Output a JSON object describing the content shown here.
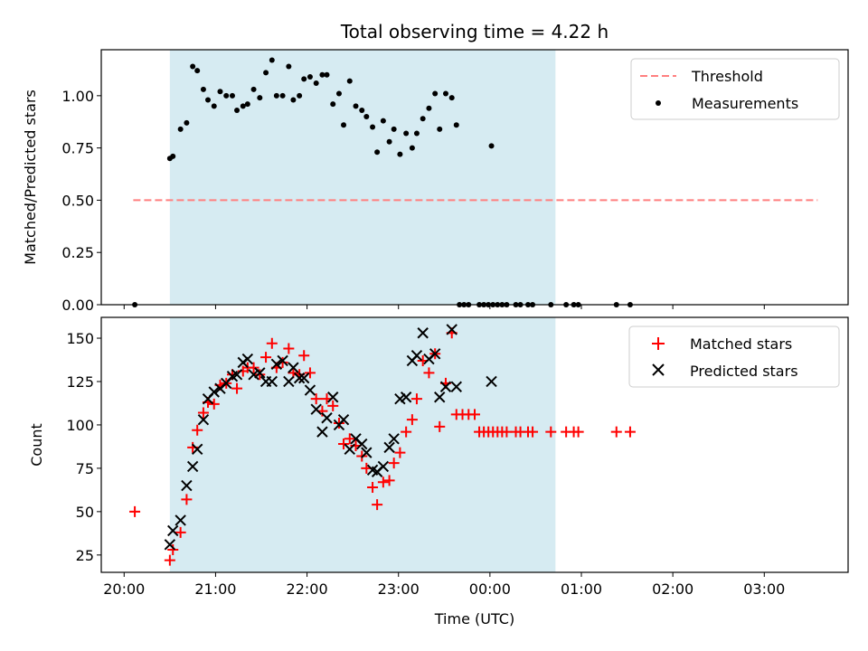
{
  "chart_data": {
    "title": "Total observing time = 4.22 h",
    "xlabel": "Time (UTC)",
    "x_ticks": [
      "20:00",
      "21:00",
      "22:00",
      "23:00",
      "00:00",
      "01:00",
      "02:00",
      "03:00"
    ],
    "observing_window": {
      "start": "20:30",
      "end": "00:43",
      "color": "#add8e6"
    },
    "panels": [
      {
        "type": "scatter",
        "ylabel": "Matched/Predicted stars",
        "ylim": [
          0,
          1.22
        ],
        "y_ticks": [
          "0.00",
          "0.25",
          "0.50",
          "0.75",
          "1.00"
        ],
        "legend_placement": "top-right",
        "series": [
          {
            "name": "Threshold",
            "kind": "dashed-line",
            "color": "#ff7f7f",
            "points": [
              [
                "20:06",
                0.5
              ],
              [
                "03:35",
                0.5
              ]
            ]
          },
          {
            "name": "Measurements",
            "kind": "dot",
            "color": "#000000",
            "points": [
              [
                "20:07",
                0.0
              ],
              [
                "20:30",
                0.7
              ],
              [
                "20:32",
                0.71
              ],
              [
                "20:37",
                0.84
              ],
              [
                "20:41",
                0.87
              ],
              [
                "20:45",
                1.14
              ],
              [
                "20:48",
                1.12
              ],
              [
                "20:52",
                1.03
              ],
              [
                "20:55",
                0.98
              ],
              [
                "20:59",
                0.95
              ],
              [
                "21:03",
                1.02
              ],
              [
                "21:07",
                1.0
              ],
              [
                "21:11",
                1.0
              ],
              [
                "21:14",
                0.93
              ],
              [
                "21:18",
                0.95
              ],
              [
                "21:21",
                0.96
              ],
              [
                "21:25",
                1.03
              ],
              [
                "21:29",
                0.99
              ],
              [
                "21:33",
                1.11
              ],
              [
                "21:37",
                1.17
              ],
              [
                "21:40",
                1.0
              ],
              [
                "21:44",
                1.0
              ],
              [
                "21:48",
                1.14
              ],
              [
                "21:51",
                0.98
              ],
              [
                "21:55",
                1.0
              ],
              [
                "21:58",
                1.08
              ],
              [
                "22:02",
                1.09
              ],
              [
                "22:06",
                1.06
              ],
              [
                "22:10",
                1.1
              ],
              [
                "22:13",
                1.1
              ],
              [
                "22:17",
                0.96
              ],
              [
                "22:21",
                1.01
              ],
              [
                "22:24",
                0.86
              ],
              [
                "22:28",
                1.07
              ],
              [
                "22:32",
                0.95
              ],
              [
                "22:36",
                0.93
              ],
              [
                "22:39",
                0.9
              ],
              [
                "22:43",
                0.85
              ],
              [
                "22:46",
                0.73
              ],
              [
                "22:50",
                0.88
              ],
              [
                "22:54",
                0.78
              ],
              [
                "22:57",
                0.84
              ],
              [
                "23:01",
                0.72
              ],
              [
                "23:05",
                0.82
              ],
              [
                "23:09",
                0.75
              ],
              [
                "23:12",
                0.82
              ],
              [
                "23:16",
                0.89
              ],
              [
                "23:20",
                0.94
              ],
              [
                "23:24",
                1.01
              ],
              [
                "23:27",
                0.84
              ],
              [
                "23:31",
                1.01
              ],
              [
                "23:35",
                0.99
              ],
              [
                "23:38",
                0.86
              ],
              [
                "00:01",
                0.76
              ]
            ]
          },
          {
            "name": "",
            "kind": "dot",
            "color": "#000000",
            "points": [
              [
                "23:40",
                0
              ],
              [
                "23:43",
                0
              ],
              [
                "23:46",
                0
              ],
              [
                "23:53",
                0
              ],
              [
                "23:56",
                0
              ],
              [
                "23:59",
                0
              ],
              [
                "00:02",
                0
              ],
              [
                "00:05",
                0
              ],
              [
                "00:08",
                0
              ],
              [
                "00:11",
                0
              ],
              [
                "00:17",
                0
              ],
              [
                "00:20",
                0
              ],
              [
                "00:25",
                0
              ],
              [
                "00:28",
                0
              ],
              [
                "00:40",
                0
              ],
              [
                "00:50",
                0
              ],
              [
                "00:55",
                0
              ],
              [
                "00:58",
                0
              ],
              [
                "01:23",
                0
              ],
              [
                "01:32",
                0
              ]
            ]
          }
        ]
      },
      {
        "type": "scatter",
        "ylabel": "Count",
        "ylim": [
          15,
          162
        ],
        "y_ticks": [
          "25",
          "50",
          "75",
          "100",
          "125",
          "150"
        ],
        "legend_placement": "top-right",
        "series": [
          {
            "name": "Matched stars",
            "kind": "plus",
            "color": "#ff0000",
            "points": [
              [
                "20:07",
                50
              ],
              [
                "20:30",
                22
              ],
              [
                "20:32",
                28
              ],
              [
                "20:37",
                38
              ],
              [
                "20:41",
                57
              ],
              [
                "20:45",
                87
              ],
              [
                "20:48",
                97
              ],
              [
                "20:52",
                107
              ],
              [
                "20:55",
                113
              ],
              [
                "20:59",
                112
              ],
              [
                "21:03",
                123
              ],
              [
                "21:07",
                124
              ],
              [
                "21:11",
                129
              ],
              [
                "21:14",
                121
              ],
              [
                "21:18",
                131
              ],
              [
                "21:21",
                133
              ],
              [
                "21:25",
                133
              ],
              [
                "21:29",
                129
              ],
              [
                "21:33",
                139
              ],
              [
                "21:37",
                147
              ],
              [
                "21:40",
                133
              ],
              [
                "21:44",
                136
              ],
              [
                "21:48",
                144
              ],
              [
                "21:51",
                130
              ],
              [
                "21:55",
                129
              ],
              [
                "21:58",
                140
              ],
              [
                "22:02",
                130
              ],
              [
                "22:06",
                115
              ],
              [
                "22:10",
                108
              ],
              [
                "22:13",
                115
              ],
              [
                "22:17",
                111
              ],
              [
                "22:21",
                101
              ],
              [
                "22:24",
                89
              ],
              [
                "22:28",
                92
              ],
              [
                "22:32",
                88
              ],
              [
                "22:36",
                82
              ],
              [
                "22:39",
                75
              ],
              [
                "22:43",
                64
              ],
              [
                "22:46",
                54
              ],
              [
                "22:50",
                67
              ],
              [
                "22:54",
                68
              ],
              [
                "22:57",
                78
              ],
              [
                "23:01",
                84
              ],
              [
                "23:05",
                96
              ],
              [
                "23:09",
                103
              ],
              [
                "23:12",
                115
              ],
              [
                "23:16",
                137
              ],
              [
                "23:20",
                130
              ],
              [
                "23:24",
                141
              ],
              [
                "23:27",
                99
              ],
              [
                "23:31",
                124
              ],
              [
                "23:35",
                153
              ],
              [
                "23:38",
                106
              ],
              [
                "23:42",
                106
              ],
              [
                "23:46",
                106
              ],
              [
                "23:50",
                106
              ],
              [
                "23:53",
                96
              ],
              [
                "23:56",
                96
              ],
              [
                "23:59",
                96
              ],
              [
                "00:02",
                96
              ],
              [
                "00:05",
                96
              ],
              [
                "00:08",
                96
              ],
              [
                "00:11",
                96
              ],
              [
                "00:17",
                96
              ],
              [
                "00:20",
                96
              ],
              [
                "00:25",
                96
              ],
              [
                "00:28",
                96
              ],
              [
                "00:40",
                96
              ],
              [
                "00:50",
                96
              ],
              [
                "00:55",
                96
              ],
              [
                "00:58",
                96
              ],
              [
                "01:23",
                96
              ],
              [
                "01:32",
                96
              ]
            ]
          },
          {
            "name": "Predicted stars",
            "kind": "x",
            "color": "#000000",
            "points": [
              [
                "20:30",
                31
              ],
              [
                "20:32",
                39
              ],
              [
                "20:37",
                45
              ],
              [
                "20:41",
                65
              ],
              [
                "20:45",
                76
              ],
              [
                "20:48",
                86
              ],
              [
                "20:52",
                103
              ],
              [
                "20:55",
                115
              ],
              [
                "20:59",
                119
              ],
              [
                "21:03",
                121
              ],
              [
                "21:07",
                124
              ],
              [
                "21:11",
                128
              ],
              [
                "21:14",
                129
              ],
              [
                "21:18",
                136
              ],
              [
                "21:21",
                138
              ],
              [
                "21:25",
                129
              ],
              [
                "21:29",
                130
              ],
              [
                "21:33",
                125
              ],
              [
                "21:37",
                125
              ],
              [
                "21:40",
                135
              ],
              [
                "21:44",
                137
              ],
              [
                "21:48",
                125
              ],
              [
                "21:51",
                133
              ],
              [
                "21:55",
                127
              ],
              [
                "21:58",
                127
              ],
              [
                "22:02",
                120
              ],
              [
                "22:06",
                109
              ],
              [
                "22:10",
                96
              ],
              [
                "22:13",
                104
              ],
              [
                "22:17",
                116
              ],
              [
                "22:21",
                100
              ],
              [
                "22:24",
                103
              ],
              [
                "22:28",
                86
              ],
              [
                "22:32",
                92
              ],
              [
                "22:36",
                89
              ],
              [
                "22:39",
                84
              ],
              [
                "22:43",
                74
              ],
              [
                "22:46",
                73
              ],
              [
                "22:50",
                76
              ],
              [
                "22:54",
                87
              ],
              [
                "22:57",
                92
              ],
              [
                "23:01",
                115
              ],
              [
                "23:05",
                116
              ],
              [
                "23:09",
                137
              ],
              [
                "23:12",
                140
              ],
              [
                "23:16",
                153
              ],
              [
                "23:20",
                138
              ],
              [
                "23:24",
                141
              ],
              [
                "23:27",
                116
              ],
              [
                "23:31",
                122
              ],
              [
                "23:35",
                155
              ],
              [
                "23:38",
                122
              ],
              [
                "00:01",
                125
              ]
            ]
          }
        ]
      }
    ]
  }
}
